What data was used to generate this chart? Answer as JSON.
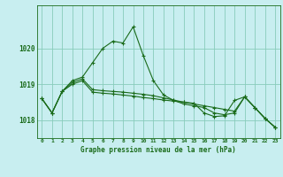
{
  "title": "Graphe pression niveau de la mer (hPa)",
  "background_color": "#c8eef0",
  "grid_color": "#88ccbb",
  "line_color": "#1a6b1a",
  "x_labels": [
    "0",
    "1",
    "2",
    "3",
    "4",
    "5",
    "6",
    "7",
    "8",
    "9",
    "10",
    "11",
    "12",
    "13",
    "14",
    "15",
    "16",
    "17",
    "18",
    "19",
    "20",
    "21",
    "22",
    "23"
  ],
  "ylim": [
    1017.5,
    1021.2
  ],
  "yticks": [
    1018,
    1019,
    1020
  ],
  "series": [
    [
      1018.6,
      1018.2,
      1018.8,
      1019.1,
      1019.2,
      1019.6,
      1020.0,
      1020.2,
      1020.15,
      1020.6,
      1019.8,
      1019.1,
      1018.7,
      1018.55,
      1018.45,
      1018.4,
      1018.35,
      1018.2,
      1018.15,
      1018.2,
      1018.65,
      1018.35,
      1018.05,
      1017.8
    ],
    [
      1018.6,
      1018.2,
      1018.8,
      1019.05,
      1019.15,
      1018.85,
      1018.82,
      1018.8,
      1018.78,
      1018.75,
      1018.72,
      1018.68,
      1018.62,
      1018.56,
      1018.5,
      1018.45,
      1018.4,
      1018.35,
      1018.3,
      1018.25,
      1018.65,
      1018.35,
      1018.05,
      1017.8
    ],
    [
      1018.6,
      1018.2,
      1018.8,
      1019.0,
      1019.1,
      1018.78,
      1018.75,
      1018.73,
      1018.7,
      1018.67,
      1018.63,
      1018.6,
      1018.56,
      1018.53,
      1018.5,
      1018.47,
      1018.2,
      1018.1,
      1018.12,
      1018.55,
      1018.65,
      1018.35,
      1018.05,
      1017.8
    ]
  ]
}
